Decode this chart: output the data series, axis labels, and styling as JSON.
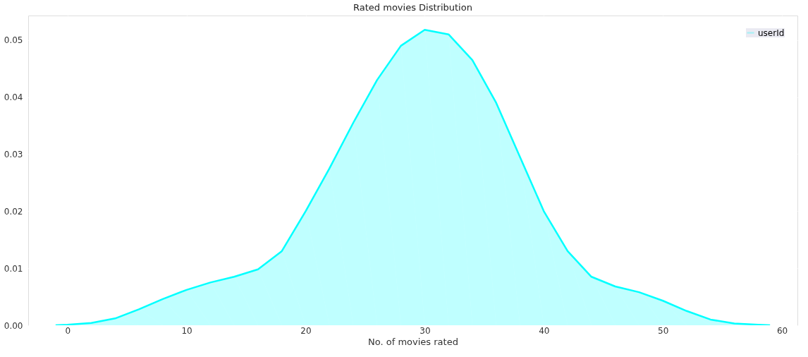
{
  "chart_data": {
    "type": "area",
    "title": "Rated movies Distribution",
    "xlabel": "No. of movies rated",
    "x": [
      -1,
      0,
      2,
      4,
      6,
      8,
      10,
      12,
      14,
      16,
      18,
      20,
      22,
      24,
      26,
      28,
      30,
      32,
      34,
      36,
      38,
      40,
      42,
      44,
      46,
      48,
      50,
      52,
      54,
      56,
      58,
      59
    ],
    "series": [
      {
        "name": "userId",
        "color": "#00ffff",
        "values": [
          0,
          0.0001,
          0.0004,
          0.0012,
          0.0028,
          0.0046,
          0.0062,
          0.0075,
          0.0085,
          0.0098,
          0.013,
          0.02,
          0.0275,
          0.0355,
          0.043,
          0.049,
          0.0518,
          0.051,
          0.0465,
          0.039,
          0.0295,
          0.02,
          0.013,
          0.0085,
          0.0068,
          0.0058,
          0.0043,
          0.0025,
          0.001,
          0.0003,
          0.0001,
          0
        ]
      }
    ],
    "xlim": [
      -3.3,
      61.3
    ],
    "ylim": [
      0,
      0.0543
    ],
    "xticks": [
      0,
      10,
      20,
      30,
      40,
      50,
      60
    ],
    "yticks": [
      {
        "value": 0,
        "label": "0.00"
      },
      {
        "value": 0.01,
        "label": "0.01"
      },
      {
        "value": 0.02,
        "label": "0.02"
      },
      {
        "value": 0.03,
        "label": "0.03"
      },
      {
        "value": 0.04,
        "label": "0.04"
      },
      {
        "value": 0.05,
        "label": "0.05"
      }
    ],
    "grid": true,
    "legend": "top right"
  }
}
